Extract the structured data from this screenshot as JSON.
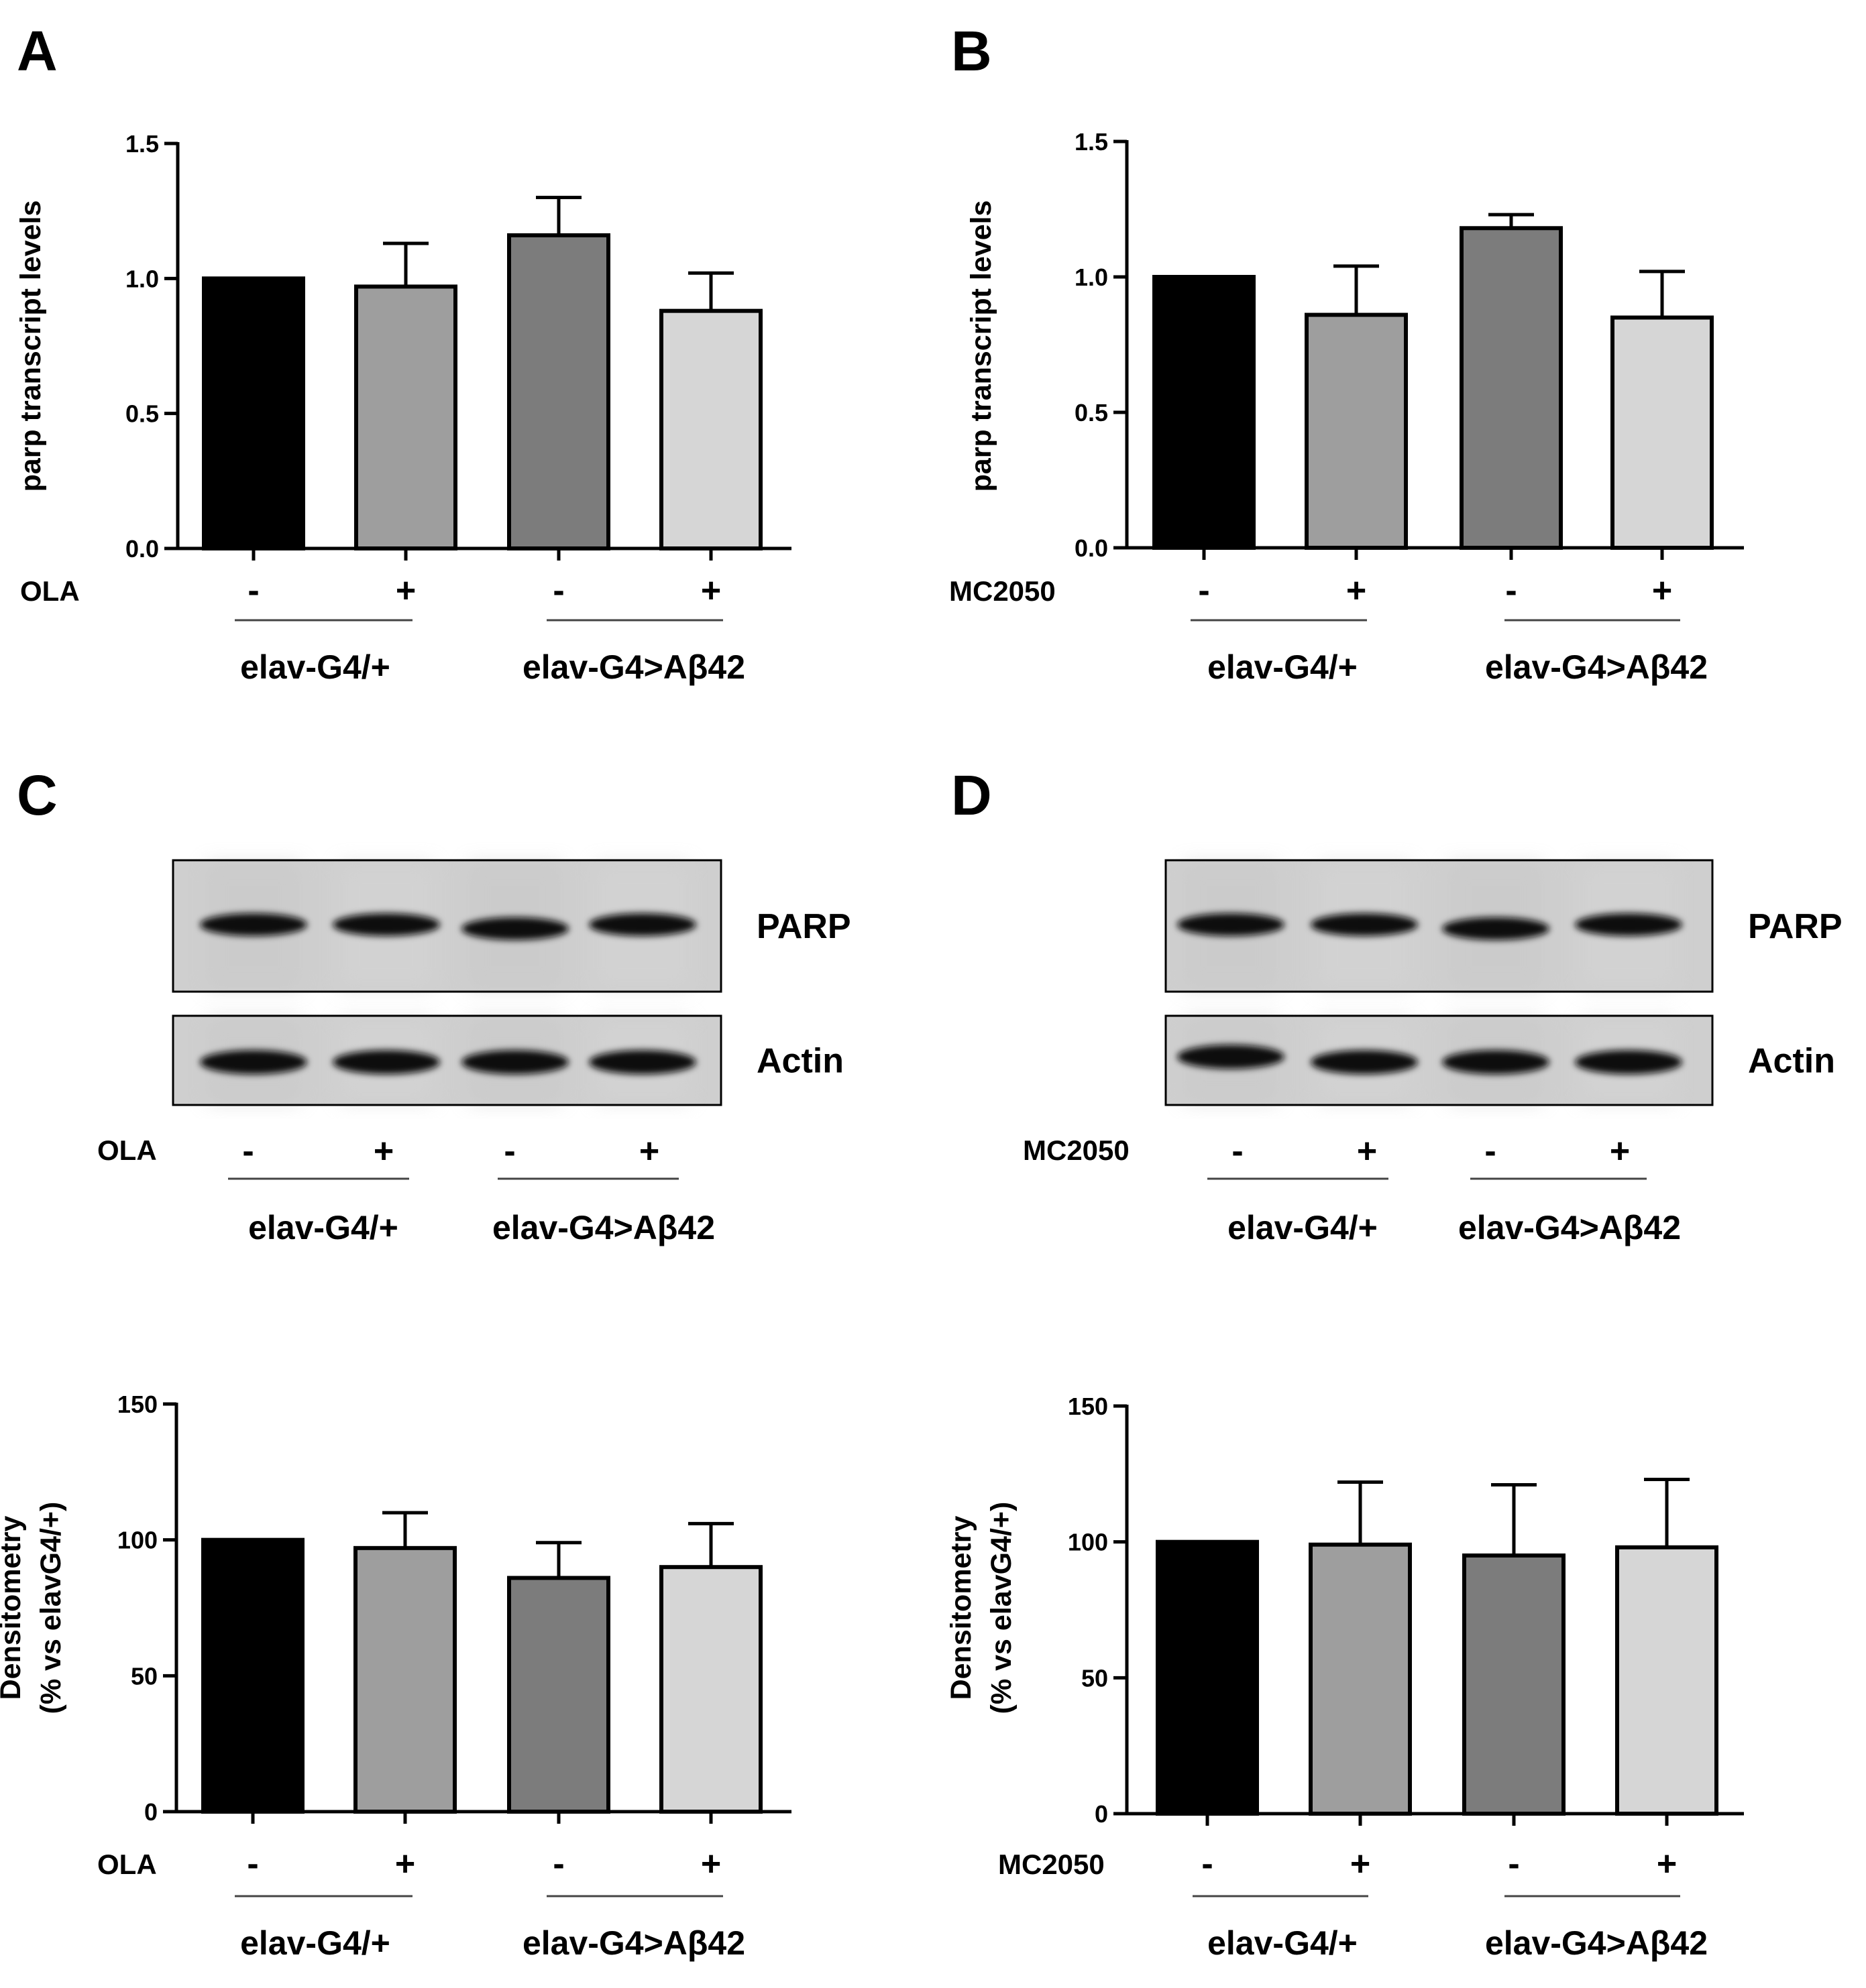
{
  "panels": [
    {
      "id": "A",
      "letter": "A"
    },
    {
      "id": "B",
      "letter": "B"
    },
    {
      "id": "C",
      "letter": "C"
    },
    {
      "id": "D",
      "letter": "D"
    }
  ],
  "colors": {
    "bar_fills": [
      "#000000",
      "#9e9e9e",
      "#7c7c7c",
      "#d6d6d6"
    ],
    "blot_background": "#cfcfcf",
    "band": "#0d0d0d"
  },
  "chart_data": [
    {
      "panel": "A",
      "type": "bar",
      "title": "",
      "xlabel": "",
      "ylabel": "parp transcript levels",
      "ylim": [
        0,
        1.5
      ],
      "yticks": [
        "0.0",
        "0.5",
        "1.0",
        "1.5"
      ],
      "categories": [
        "elav-G4/+ OLA -",
        "elav-G4/+ OLA +",
        "elav-G4>Aβ42 OLA -",
        "elav-G4>Aβ42 OLA +"
      ],
      "values": [
        1.0,
        0.97,
        1.16,
        0.88
      ],
      "errors": [
        0.0,
        0.16,
        0.14,
        0.14
      ],
      "treatment": "OLA",
      "signs": [
        "-",
        "+",
        "-",
        "+"
      ],
      "groups": [
        "elav-G4/+",
        "elav-G4>Aβ42"
      ]
    },
    {
      "panel": "B",
      "type": "bar",
      "title": "",
      "xlabel": "",
      "ylabel": "parp transcript levels",
      "ylim": [
        0,
        1.5
      ],
      "yticks": [
        "0.0",
        "0.5",
        "1.0",
        "1.5"
      ],
      "categories": [
        "elav-G4/+ MC2050 -",
        "elav-G4/+ MC2050 +",
        "elav-G4>Aβ42 MC2050 -",
        "elav-G4>Aβ42 MC2050 +"
      ],
      "values": [
        1.0,
        0.86,
        1.18,
        0.85
      ],
      "errors": [
        0.0,
        0.18,
        0.05,
        0.17
      ],
      "treatment": "MC2050",
      "signs": [
        "-",
        "+",
        "-",
        "+"
      ],
      "groups": [
        "elav-G4/+",
        "elav-G4>Aβ42"
      ]
    },
    {
      "panel": "C",
      "type": "bar",
      "title": "",
      "xlabel": "",
      "ylabel": [
        "Densitometry",
        "(% vs elavG4/+)"
      ],
      "ylim": [
        0,
        150
      ],
      "yticks": [
        "0",
        "50",
        "100",
        "150"
      ],
      "categories": [
        "elav-G4/+ OLA -",
        "elav-G4/+ OLA +",
        "elav-G4>Aβ42 OLA -",
        "elav-G4>Aβ42 OLA +"
      ],
      "values": [
        100,
        97,
        86,
        90
      ],
      "errors": [
        0,
        13,
        13,
        16
      ],
      "treatment": "OLA",
      "signs": [
        "-",
        "+",
        "-",
        "+"
      ],
      "groups": [
        "elav-G4/+",
        "elav-G4>Aβ42"
      ]
    },
    {
      "panel": "D",
      "type": "bar",
      "title": "",
      "xlabel": "",
      "ylabel": [
        "Densitometry",
        "(% vs elavG4/+)"
      ],
      "ylim": [
        0,
        150
      ],
      "yticks": [
        "0",
        "50",
        "100",
        "150"
      ],
      "categories": [
        "elav-G4/+ MC2050 -",
        "elav-G4/+ MC2050 +",
        "elav-G4>Aβ42 MC2050 -",
        "elav-G4>Aβ42 MC2050 +"
      ],
      "values": [
        100,
        99,
        95,
        98
      ],
      "errors": [
        0,
        23,
        26,
        25
      ],
      "treatment": "MC2050",
      "signs": [
        "-",
        "+",
        "-",
        "+"
      ],
      "groups": [
        "elav-G4/+",
        "elav-G4>Aβ42"
      ]
    }
  ],
  "blots": [
    {
      "panel": "C",
      "bands": [
        "PARP",
        "Actin"
      ],
      "treatment": "OLA",
      "signs": [
        "-",
        "+",
        "-",
        "+"
      ],
      "groups": [
        "elav-G4/+",
        "elav-G4>Aβ42"
      ]
    },
    {
      "panel": "D",
      "bands": [
        "PARP",
        "Actin"
      ],
      "treatment": "MC2050",
      "signs": [
        "-",
        "+",
        "-",
        "+"
      ],
      "groups": [
        "elav-G4/+",
        "elav-G4>Aβ42"
      ]
    }
  ]
}
